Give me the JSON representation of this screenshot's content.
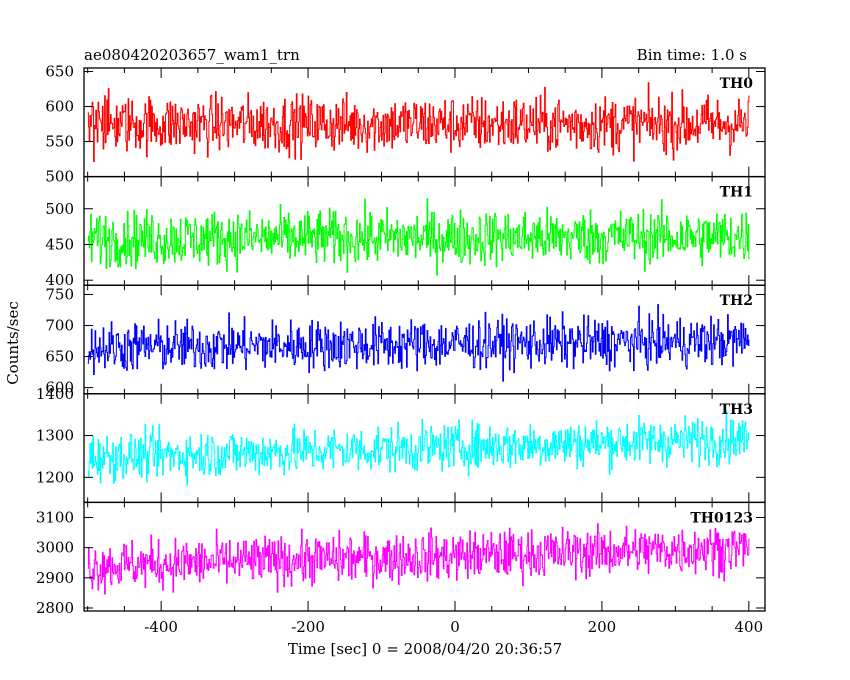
{
  "title_left": "ae080420203657_wam1_trn",
  "title_right": "Bin time: 1.0 s",
  "chart_data": {
    "type": "line",
    "xlabel": "Time [sec] 0 = 2008/04/20 20:36:57",
    "ylabel": "Counts/sec",
    "xlim": [
      -505,
      422
    ],
    "xticks": [
      -400,
      -200,
      0,
      200,
      400
    ],
    "bin_time_s": 1.0,
    "x_range": [
      -500,
      400
    ],
    "grid": false,
    "panels": [
      {
        "name": "TH0",
        "color": "#ff0000",
        "ylim": [
          500,
          655
        ],
        "yticks": [
          500,
          550,
          600,
          650
        ],
        "mean": 575,
        "amplitude": 40,
        "trend": 0
      },
      {
        "name": "TH1",
        "color": "#00ff00",
        "ylim": [
          393,
          545
        ],
        "yticks": [
          400,
          450,
          500
        ],
        "mean": 458,
        "amplitude": 38,
        "trend": 3
      },
      {
        "name": "TH2",
        "color": "#0000ff",
        "ylim": [
          590,
          765
        ],
        "yticks": [
          600,
          650,
          700,
          750
        ],
        "mean": 665,
        "amplitude": 40,
        "trend": 10
      },
      {
        "name": "TH3",
        "color": "#00ffff",
        "ylim": [
          1140,
          1400
        ],
        "yticks": [
          1200,
          1300,
          1400
        ],
        "mean": 1248,
        "amplitude": 55,
        "trend": 45
      },
      {
        "name": "TH0123",
        "color": "#ff00ff",
        "ylim": [
          2790,
          3150
        ],
        "yticks": [
          2800,
          2900,
          3000,
          3100
        ],
        "mean": 2940,
        "amplitude": 80,
        "trend": 60
      }
    ]
  }
}
